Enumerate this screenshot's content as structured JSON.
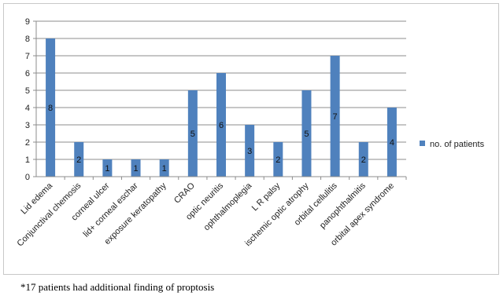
{
  "chart_data": {
    "type": "bar",
    "categories": [
      "Lid edema",
      "Conjunctival chemosis",
      "corneal ulcer",
      "lid+ corneal eschar",
      "exposure keratopathy",
      "CRAO",
      "optic neuritis",
      "ophthalmoplegia",
      "L R palsy",
      "ischemic optic atrophy",
      "orbital cellulitis",
      "panophthalmitis",
      "orbital apex syndrome"
    ],
    "series": [
      {
        "name": "no. of patients",
        "values": [
          8,
          2,
          1,
          1,
          1,
          5,
          6,
          3,
          2,
          5,
          7,
          2,
          4
        ]
      }
    ],
    "ylim": [
      0,
      9
    ],
    "yticks": [
      "0",
      "1",
      "2",
      "3",
      "4",
      "5",
      "6",
      "7",
      "8",
      "9"
    ],
    "grid": true,
    "legend_position": "right",
    "bar_color": "#4f81bd"
  },
  "footnote": "*17 patients had additional finding of proptosis"
}
